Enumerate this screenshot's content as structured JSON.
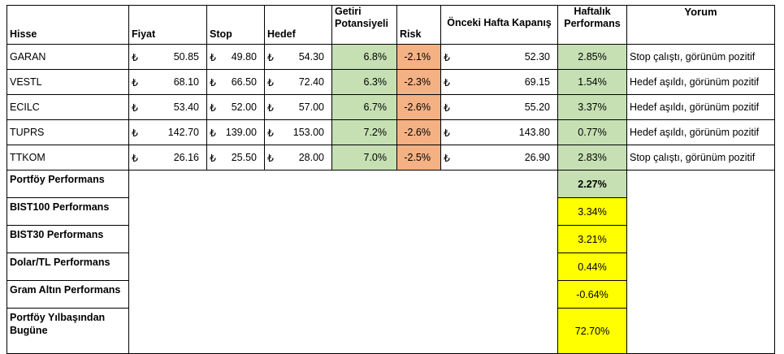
{
  "table": {
    "currency_symbol": "₺",
    "columns": [
      "Hisse",
      "Fiyat",
      "Stop",
      "Hedef",
      "Getiri Potansiyeli",
      "Risk",
      "Önceki Hafta Kapanış",
      "Haftalık Performans",
      "Yorum"
    ],
    "rows": [
      [
        "GARAN",
        "50.85",
        "49.80",
        "54.30",
        "6.8%",
        "-2.1%",
        "52.30",
        "2.85%",
        "Stop çalıştı, görünüm pozitif"
      ],
      [
        "VESTL",
        "68.10",
        "66.50",
        "72.40",
        "6.3%",
        "-2.3%",
        "69.15",
        "1.54%",
        "Hedef aşıldı, görünüm pozitif"
      ],
      [
        "ECILC",
        "53.40",
        "52.00",
        "57.00",
        "6.7%",
        "-2.6%",
        "55.20",
        "3.37%",
        "Hedef aşıldı, görünüm pozitif"
      ],
      [
        "TUPRS",
        "142.70",
        "139.00",
        "153.00",
        "7.2%",
        "-2.6%",
        "143.80",
        "0.77%",
        "Hedef aşıldı, görünüm pozitif"
      ],
      [
        "TTKOM",
        "26.16",
        "25.50",
        "28.00",
        "7.0%",
        "-2.5%",
        "26.90",
        "2.83%",
        "Stop çalıştı, görünüm pozitif"
      ]
    ],
    "summary": [
      {
        "label": "Portföy Performans",
        "value": "2.27%"
      },
      {
        "label": "BIST100 Performans",
        "value": "3.34%"
      },
      {
        "label": "BIST30 Performans",
        "value": "3.21%"
      },
      {
        "label": "Dolar/TL Performans",
        "value": "0.44%"
      },
      {
        "label": "Gram Altın Performans",
        "value": "-0.64%"
      },
      {
        "label": "Portföy Yılbaşından Bugüne",
        "value": "72.70%"
      }
    ]
  }
}
